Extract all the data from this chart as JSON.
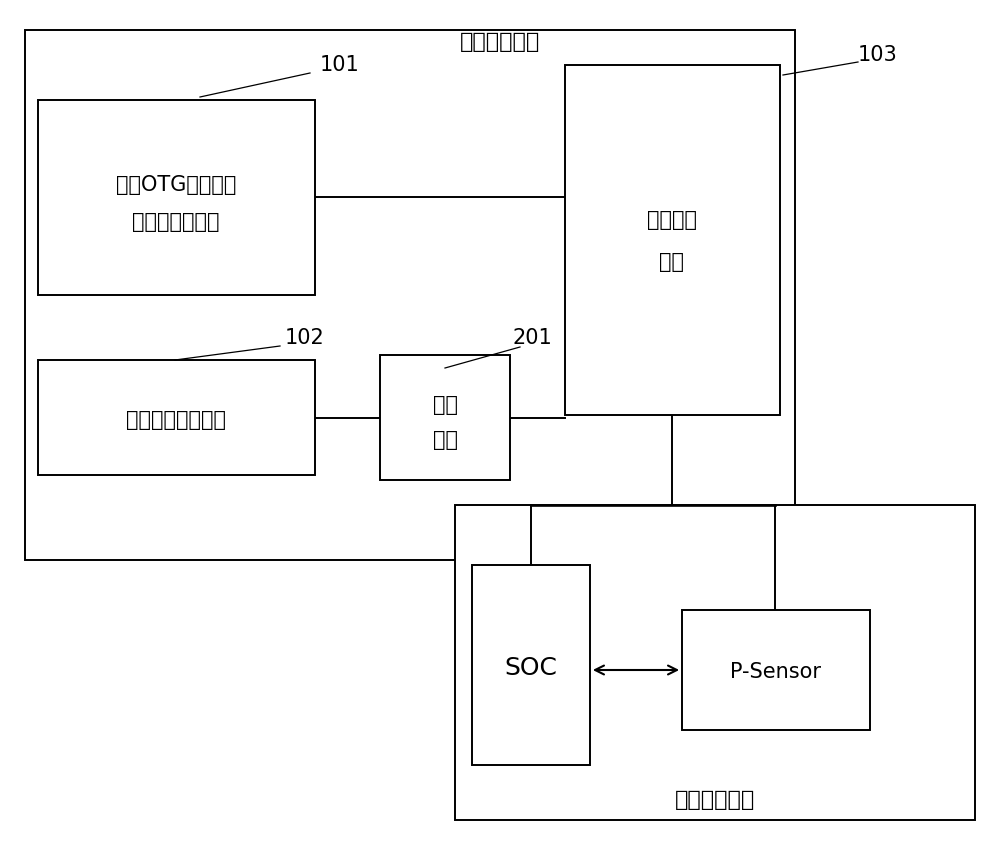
{
  "fig_width": 10.0,
  "fig_height": 8.49,
  "bg_color": "#ffffff",
  "outer1_label": "电源切换电路",
  "outer2_label": "虚拟现实产品",
  "label_101": "101",
  "label_102": "102",
  "label_103": "103",
  "label_201": "201",
  "box1_line1": "支持OTG功能的通",
  "box1_line2": "用串行总线接口",
  "box2_text": "通用串行总线接口",
  "box3_line1": "电源切换",
  "box3_line2": "单元",
  "box4_line1": "限流",
  "box4_line2": "单元",
  "box5_text": "SOC",
  "box6_text": "P-Sensor",
  "lw": 1.4
}
